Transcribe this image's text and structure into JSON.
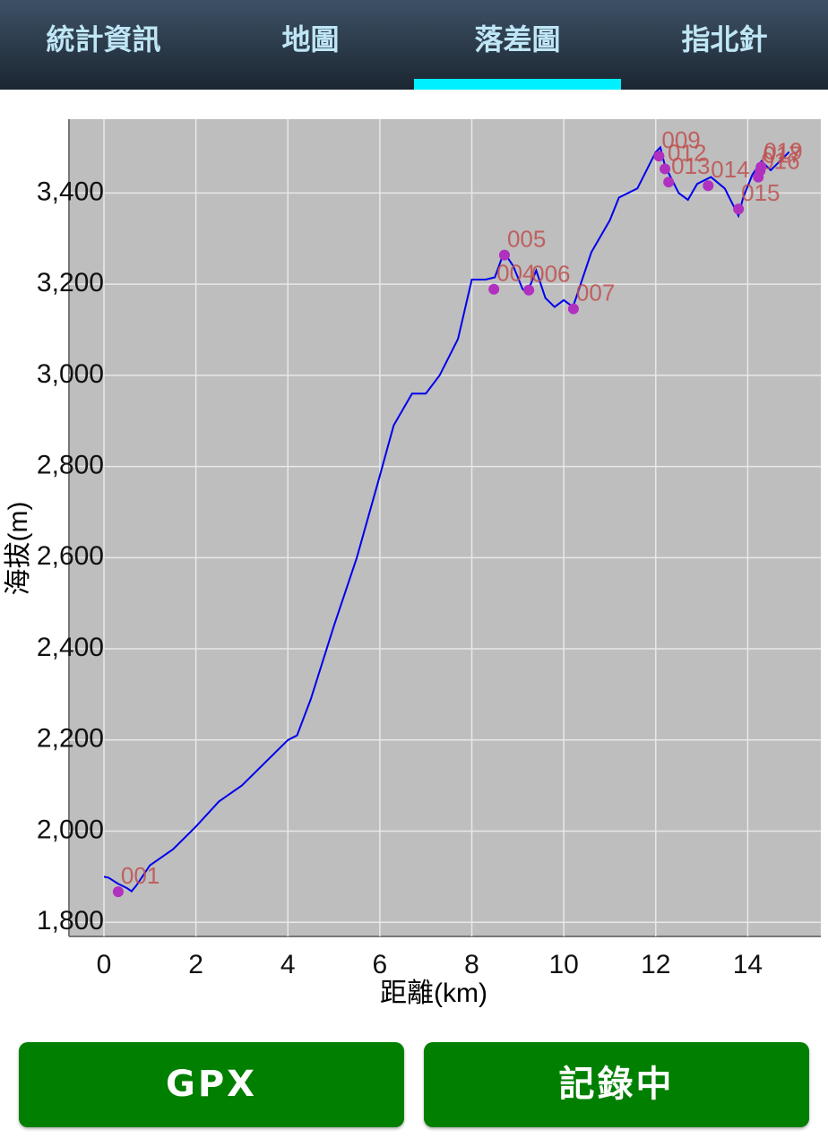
{
  "tabs": [
    "統計資訊",
    "地圖",
    "落差圖",
    "指北針"
  ],
  "chart_data": {
    "type": "line",
    "x_label": "距離(km)",
    "y_label": "海拔(m)",
    "color": "#0000ee",
    "x": [
      0,
      0.1,
      0.3,
      0.5,
      0.6,
      0.7,
      1.0,
      1.5,
      2.0,
      2.5,
      3.0,
      3.5,
      4.0,
      4.2,
      4.5,
      5.0,
      5.5,
      6.0,
      6.3,
      6.7,
      7.0,
      7.3,
      7.7,
      8.0,
      8.3,
      8.5,
      8.7,
      8.9,
      9.1,
      9.2,
      9.4,
      9.6,
      9.8,
      10.0,
      10.2,
      10.6,
      11.0,
      11.2,
      11.6,
      12.0,
      12.1,
      12.2,
      12.5,
      12.7,
      12.9,
      13.2,
      13.5,
      13.8,
      13.9,
      14.1,
      14.3,
      14.5,
      14.7,
      14.9
    ],
    "values": [
      1900,
      1898,
      1885,
      1875,
      1868,
      1880,
      1925,
      1960,
      2010,
      2065,
      2100,
      2150,
      2200,
      2210,
      2290,
      2450,
      2600,
      2780,
      2890,
      2960,
      2960,
      3000,
      3080,
      3210,
      3210,
      3215,
      3270,
      3240,
      3190,
      3180,
      3230,
      3170,
      3150,
      3165,
      3150,
      3270,
      3340,
      3390,
      3410,
      3490,
      3500,
      3460,
      3400,
      3385,
      3420,
      3435,
      3410,
      3350,
      3390,
      3440,
      3470,
      3450,
      3470,
      3490
    ],
    "waypoints": {
      "color": "#b030c0",
      "label_color": "#c05050",
      "labels": [
        "001",
        "004",
        "005",
        "006",
        "007",
        "009",
        "012",
        "013",
        "014",
        "015",
        "016",
        "017",
        "019"
      ],
      "x": [
        0.31,
        8.48,
        8.71,
        9.24,
        10.21,
        12.07,
        12.2,
        12.28,
        13.14,
        13.8,
        14.23,
        14.27,
        14.29
      ],
      "y": [
        1867,
        3189,
        3264,
        3187,
        3146,
        3481,
        3453,
        3424,
        3416,
        3365,
        3435,
        3449,
        3457
      ]
    },
    "xlim": [
      -0.76,
      15.59
    ],
    "ylim": [
      1769,
      3562
    ],
    "xticks": [
      0,
      2,
      4,
      6,
      8,
      10,
      12,
      14
    ],
    "yticks": [
      {
        "value": 1800,
        "label": "1,800"
      },
      {
        "value": 2000,
        "label": "2,000"
      },
      {
        "value": 2200,
        "label": "2,200"
      },
      {
        "value": 2400,
        "label": "2,400"
      },
      {
        "value": 2600,
        "label": "2,600"
      },
      {
        "value": 2800,
        "label": "2,800"
      },
      {
        "value": 3000,
        "label": "3,000"
      },
      {
        "value": 3200,
        "label": "3,200"
      },
      {
        "value": 3400,
        "label": "3,400"
      }
    ],
    "grid": true
  },
  "buttons": [
    "GPX",
    "記錄中"
  ]
}
